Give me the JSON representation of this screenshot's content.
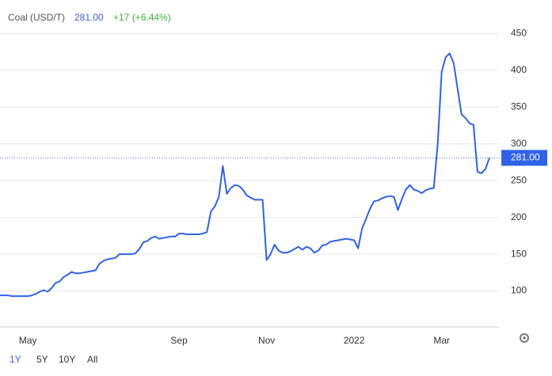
{
  "chart_data": {
    "type": "line",
    "title": "Coal (USD/T)",
    "price_label": "281.00",
    "change": "+17 (+6.44%)",
    "categories": [
      null,
      null,
      null,
      null,
      null,
      null,
      null,
      "May",
      null,
      null,
      null,
      null,
      null,
      null,
      null,
      null,
      null,
      null,
      null,
      null,
      null,
      null,
      null,
      null,
      null,
      null,
      null,
      null,
      null,
      null,
      null,
      null,
      null,
      null,
      null,
      null,
      null,
      null,
      null,
      null,
      null,
      null,
      null,
      null,
      null,
      "Sep",
      null,
      null,
      null,
      null,
      null,
      null,
      null,
      null,
      null,
      null,
      null,
      null,
      null,
      null,
      null,
      null,
      null,
      null,
      null,
      null,
      null,
      "Nov",
      null,
      null,
      null,
      null,
      null,
      null,
      null,
      null,
      null,
      null,
      null,
      null,
      null,
      null,
      null,
      null,
      null,
      null,
      null,
      null,
      null,
      "2022",
      null,
      null,
      null,
      null,
      null,
      null,
      null,
      null,
      null,
      null,
      null,
      null,
      null,
      null,
      null,
      null,
      null,
      null,
      null,
      null,
      null,
      "Mar",
      null,
      null,
      null,
      null,
      null,
      null,
      null,
      null,
      null,
      null,
      null,
      null
    ],
    "series": [
      {
        "name": "Coal (USD/T)",
        "color": "#2f62e6",
        "values": [
          94,
          94,
          94,
          93,
          93,
          93,
          93,
          93,
          94,
          96,
          99,
          101,
          99,
          104,
          111,
          113,
          119,
          122,
          126,
          124,
          124,
          125,
          126,
          127,
          128,
          137,
          141,
          143,
          144,
          145,
          150,
          150,
          150,
          150,
          151,
          157,
          166,
          168,
          172,
          174,
          171,
          172,
          173,
          174,
          174,
          178,
          178,
          177,
          177,
          177,
          177,
          178,
          180,
          208,
          215,
          228,
          270,
          232,
          240,
          244,
          243,
          238,
          230,
          227,
          224,
          224,
          224,
          142,
          150,
          163,
          155,
          152,
          152,
          154,
          157,
          160,
          156,
          160,
          158,
          152,
          155,
          162,
          163,
          167,
          168,
          169,
          170,
          171,
          170,
          169,
          158,
          185,
          198,
          212,
          222,
          223,
          226,
          228,
          229,
          228,
          210,
          225,
          238,
          244,
          238,
          236,
          233,
          237,
          239,
          240,
          300,
          398,
          418,
          423,
          410,
          375,
          340,
          335,
          328,
          326,
          262,
          260,
          266,
          281
        ]
      }
    ],
    "ylim": [
      50,
      500
    ],
    "yticks": [
      100,
      150,
      200,
      250,
      300,
      350,
      400,
      450
    ],
    "grid": true,
    "ranges": [
      "1Y",
      "5Y",
      "10Y",
      "All"
    ]
  }
}
